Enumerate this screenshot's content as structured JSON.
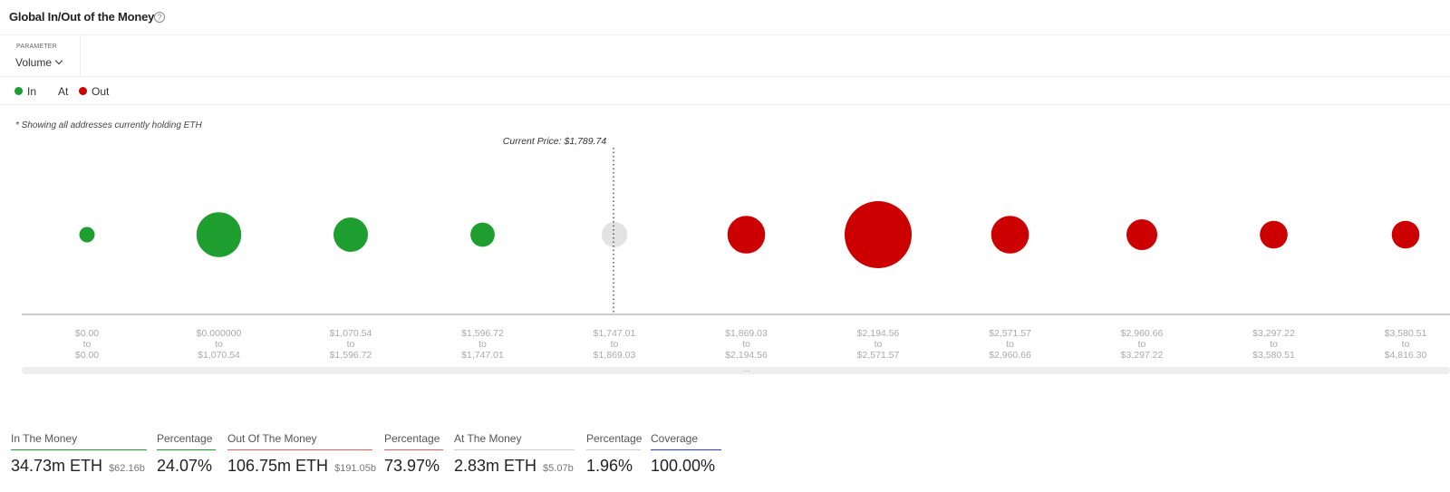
{
  "header": {
    "title": "Global In/Out of the Money",
    "help_icon": "?"
  },
  "parameter": {
    "label": "PARAMETER",
    "value": "Volume"
  },
  "legend": {
    "in": {
      "label": "In",
      "color": "#1e9e2e"
    },
    "at": {
      "label": "At"
    },
    "out": {
      "label": "Out",
      "color": "#cc0000"
    }
  },
  "note": "* Showing all addresses currently holding ETH",
  "colors": {
    "in": "#1e9e2e",
    "at": "#e3e3e3",
    "out": "#cc0000",
    "axis": "#999999",
    "tick": "#aaaaaa"
  },
  "chart_data": {
    "type": "bubble",
    "current_price_label": "Current Price: $1,789.74",
    "categories": [
      {
        "from": "$0.00",
        "to_word": "to",
        "to": "$0.00",
        "status": "in",
        "volume": 2
      },
      {
        "from": "$0.000000",
        "to_word": "to",
        "to": "$1,070.54",
        "status": "in",
        "volume": 17
      },
      {
        "from": "$1,070.54",
        "to_word": "to",
        "to": "$1,596.72",
        "status": "in",
        "volume": 10
      },
      {
        "from": "$1,596.72",
        "to_word": "to",
        "to": "$1,747.01",
        "status": "in",
        "volume": 5
      },
      {
        "from": "$1,747.01",
        "to_word": "to",
        "to": "$1,869.03",
        "status": "at",
        "volume": 5.5
      },
      {
        "from": "$1,869.03",
        "to_word": "to",
        "to": "$2,194.56",
        "status": "out",
        "volume": 12
      },
      {
        "from": "$2,194.56",
        "to_word": "to",
        "to": "$2,571.57",
        "status": "out",
        "volume": 38
      },
      {
        "from": "$2,571.57",
        "to_word": "to",
        "to": "$2,960.66",
        "status": "out",
        "volume": 12
      },
      {
        "from": "$2,960.66",
        "to_word": "to",
        "to": "$3,297.22",
        "status": "out",
        "volume": 8
      },
      {
        "from": "$3,297.22",
        "to_word": "to",
        "to": "$3,580.51",
        "status": "out",
        "volume": 6.5
      },
      {
        "from": "$3,580.51",
        "to_word": "to",
        "to": "$4,816.30",
        "status": "out",
        "volume": 6.5
      }
    ]
  },
  "stats": [
    {
      "label": "In The Money",
      "value": "34.73m ETH",
      "sub": "$62.16b",
      "color": "#1e9e2e"
    },
    {
      "label": "Percentage",
      "value": "24.07%",
      "sub": "",
      "color": "#1e9e2e"
    },
    {
      "label": "Out Of The Money",
      "value": "106.75m ETH",
      "sub": "$191.05b",
      "color": "#e06060"
    },
    {
      "label": "Percentage",
      "value": "73.97%",
      "sub": "",
      "color": "#e06060"
    },
    {
      "label": "At The Money",
      "value": "2.83m ETH",
      "sub": "$5.07b",
      "color": "#cccccc"
    },
    {
      "label": "Percentage",
      "value": "1.96%",
      "sub": "",
      "color": "#cccccc"
    },
    {
      "label": "Coverage",
      "value": "100.00%",
      "sub": "",
      "color": "#2b3fd6"
    }
  ]
}
